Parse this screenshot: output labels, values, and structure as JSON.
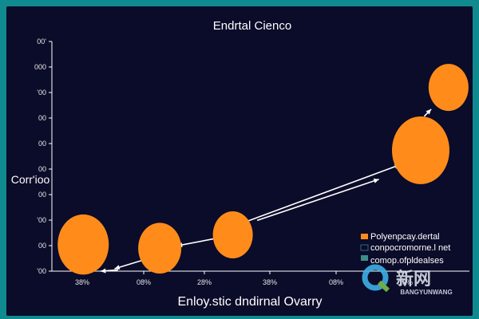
{
  "chart_data": {
    "type": "scatter",
    "title": "Endrtal Cienco",
    "xlabel": "Enloy.stic dndirnal Ovarry",
    "ylabel": "Corr'ioo",
    "x_tick_labels": [
      "38%",
      "08%",
      "28%",
      "38%",
      "08%",
      "10%"
    ],
    "y_tick_labels": [
      "'00",
      "00",
      "'00",
      "00",
      "00",
      "00",
      "00",
      "'00",
      "000",
      "00'"
    ],
    "xlim": [
      0,
      6
    ],
    "ylim": [
      0,
      9.5
    ],
    "points": [
      {
        "x": 0.45,
        "y": 1.1,
        "size": 32,
        "color": "#ff8c1a"
      },
      {
        "x": 1.55,
        "y": 0.95,
        "size": 27,
        "color": "#ff8c1a"
      },
      {
        "x": 2.6,
        "y": 1.5,
        "size": 25,
        "color": "#ff8c1a"
      },
      {
        "x": 5.3,
        "y": 5.0,
        "size": 36,
        "color": "#ff8c1a"
      },
      {
        "x": 5.7,
        "y": 7.6,
        "size": 25,
        "color": "#ff8c1a"
      }
    ],
    "arrows": [
      {
        "from": [
          0.95,
          0.05
        ],
        "to": [
          0.7,
          0.0
        ]
      },
      {
        "from": [
          1.3,
          0.45
        ],
        "to": [
          0.9,
          0.1
        ]
      },
      {
        "from": [
          2.35,
          1.35
        ],
        "to": [
          1.8,
          1.05
        ]
      },
      {
        "from": [
          2.95,
          2.1
        ],
        "to": [
          4.7,
          3.8
        ]
      },
      {
        "from": [
          2.7,
          1.95
        ],
        "to": [
          5.0,
          4.4
        ]
      },
      {
        "from": [
          5.35,
          6.4
        ],
        "to": [
          5.45,
          6.7
        ]
      }
    ],
    "legend": {
      "position": "bottom-right",
      "entries": [
        {
          "label": "Polyenpcay.dertal",
          "color": "#ff8c1a"
        },
        {
          "label": "conpocromorne.l net",
          "color": "#0b0b2a"
        },
        {
          "label": "comop.ofpldealses",
          "color": "#3a8f86"
        }
      ]
    },
    "grid": false
  },
  "watermark": {
    "cn_text": "新网",
    "en_text": "BANGYUNWANG"
  },
  "colors": {
    "background": "#0f8a8f",
    "plot_background": "#0b0b2a",
    "bubble": "#ff8c1a",
    "axis": "#ffffff"
  }
}
